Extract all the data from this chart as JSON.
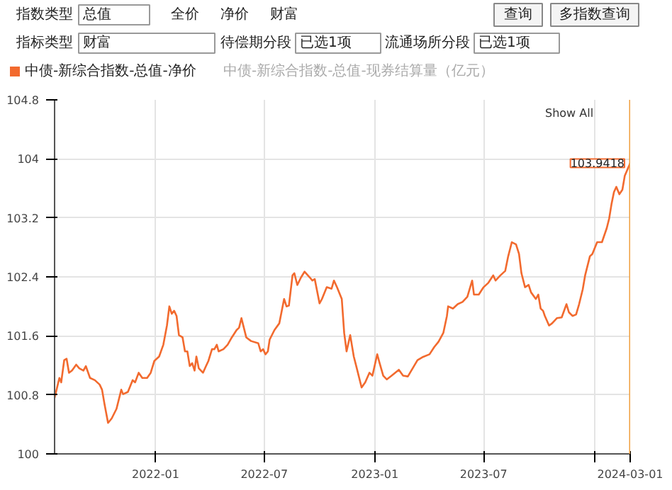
{
  "chart_data": {
    "type": "line",
    "annotations": [
      "指数类型",
      "总值",
      "全价",
      "净价",
      "财富",
      "查询",
      "多指数查询",
      "指标类型",
      "财富",
      "待偿期分段",
      "已选1项",
      "流通场所分段",
      "已选1项",
      "中债-新综合指数-总值-现券结算量（亿元）",
      "Show All",
      {
        "text": "103.9418",
        "x": "2024-03-01",
        "y": 103.9418
      }
    ],
    "x": [
      "2021-07-17",
      "2021-07-25",
      "2021-07-28",
      "2021-08-02",
      "2021-08-06",
      "2021-08-10",
      "2021-08-15",
      "2021-08-22",
      "2021-08-27",
      "2021-09-03",
      "2021-09-07",
      "2021-09-14",
      "2021-09-22",
      "2021-09-30",
      "2021-10-04",
      "2021-10-08",
      "2021-10-14",
      "2021-10-20",
      "2021-10-28",
      "2021-11-05",
      "2021-11-08",
      "2021-11-16",
      "2021-11-24",
      "2021-11-28",
      "2021-12-04",
      "2021-12-10",
      "2021-12-18",
      "2021-12-24",
      "2021-12-30",
      "2022-01-07",
      "2022-01-14",
      "2022-01-20",
      "2022-01-24",
      "2022-01-28",
      "2022-02-01",
      "2022-02-05",
      "2022-02-09",
      "2022-02-15",
      "2022-02-19",
      "2022-02-23",
      "2022-02-27",
      "2022-03-03",
      "2022-03-07",
      "2022-03-10",
      "2022-03-14",
      "2022-03-21",
      "2022-03-26",
      "2022-03-30",
      "2022-04-05",
      "2022-04-09",
      "2022-04-13",
      "2022-04-16",
      "2022-04-24",
      "2022-05-01",
      "2022-05-08",
      "2022-05-16",
      "2022-05-20",
      "2022-05-24",
      "2022-05-28",
      "2022-06-01",
      "2022-06-09",
      "2022-06-21",
      "2022-06-25",
      "2022-06-29",
      "2022-07-03",
      "2022-07-07",
      "2022-07-10",
      "2022-07-18",
      "2022-07-26",
      "2022-08-03",
      "2022-08-07",
      "2022-08-11",
      "2022-08-17",
      "2022-08-20",
      "2022-08-25",
      "2022-08-31",
      "2022-09-06",
      "2022-09-15",
      "2022-09-19",
      "2022-09-23",
      "2022-10-01",
      "2022-10-05",
      "2022-10-13",
      "2022-10-21",
      "2022-10-25",
      "2022-10-30",
      "2022-11-07",
      "2022-11-11",
      "2022-11-15",
      "2022-11-21",
      "2022-11-27",
      "2022-12-02",
      "2022-12-10",
      "2022-12-16",
      "2022-12-23",
      "2022-12-28",
      "2023-01-05",
      "2023-01-09",
      "2023-01-15",
      "2023-01-21",
      "2023-01-29",
      "2023-02-10",
      "2023-02-17",
      "2023-02-25",
      "2023-03-05",
      "2023-03-13",
      "2023-03-21",
      "2023-04-02",
      "2023-04-10",
      "2023-04-17",
      "2023-04-25",
      "2023-05-01",
      "2023-05-03",
      "2023-05-11",
      "2023-05-19",
      "2023-05-27",
      "2023-06-04",
      "2023-06-12",
      "2023-06-15",
      "2023-06-23",
      "2023-07-01",
      "2023-07-09",
      "2023-07-17",
      "2023-07-21",
      "2023-07-29",
      "2023-08-06",
      "2023-08-11",
      "2023-08-17",
      "2023-08-24",
      "2023-08-29",
      "2023-09-02",
      "2023-09-08",
      "2023-09-14",
      "2023-09-18",
      "2023-09-26",
      "2023-09-30",
      "2023-10-04",
      "2023-10-08",
      "2023-10-11",
      "2023-10-18",
      "2023-10-23",
      "2023-10-31",
      "2023-11-08",
      "2023-11-16",
      "2023-11-20",
      "2023-11-26",
      "2023-12-02",
      "2023-12-07",
      "2023-12-13",
      "2023-12-17",
      "2023-12-25",
      "2023-12-29",
      "2024-01-06",
      "2024-01-14",
      "2024-01-22",
      "2024-01-26",
      "2024-01-30",
      "2024-02-03",
      "2024-02-07",
      "2024-02-12",
      "2024-02-17",
      "2024-02-21",
      "2024-03-01"
    ],
    "series": [
      {
        "name": "中债-新综合指数-总值-净价",
        "color": "#f26a2e",
        "values": [
          100.76,
          101.03,
          100.97,
          101.27,
          101.29,
          101.1,
          101.13,
          101.21,
          101.16,
          101.13,
          101.19,
          101.03,
          101.0,
          100.94,
          100.87,
          100.68,
          100.42,
          100.48,
          100.61,
          100.87,
          100.81,
          100.84,
          101.0,
          100.97,
          101.1,
          101.03,
          101.03,
          101.1,
          101.26,
          101.32,
          101.48,
          101.74,
          102.0,
          101.9,
          101.94,
          101.87,
          101.61,
          101.58,
          101.39,
          101.39,
          101.19,
          101.23,
          101.13,
          101.32,
          101.16,
          101.1,
          101.19,
          101.26,
          101.42,
          101.42,
          101.48,
          101.39,
          101.42,
          101.48,
          101.58,
          101.68,
          101.71,
          101.84,
          101.71,
          101.58,
          101.53,
          101.5,
          101.39,
          101.42,
          101.35,
          101.39,
          101.55,
          101.68,
          101.77,
          102.1,
          102.0,
          102.01,
          102.42,
          102.45,
          102.29,
          102.39,
          102.47,
          102.39,
          102.35,
          102.37,
          102.04,
          102.1,
          102.26,
          102.24,
          102.35,
          102.26,
          102.1,
          101.64,
          101.39,
          101.61,
          101.32,
          101.16,
          100.9,
          100.97,
          101.1,
          101.06,
          101.35,
          101.23,
          101.06,
          101.01,
          101.06,
          101.14,
          101.06,
          101.05,
          101.16,
          101.27,
          101.31,
          101.35,
          101.45,
          101.52,
          101.64,
          101.87,
          102.0,
          101.97,
          102.03,
          102.06,
          102.13,
          102.35,
          102.16,
          102.16,
          102.26,
          102.32,
          102.42,
          102.35,
          102.42,
          102.48,
          102.68,
          102.87,
          102.84,
          102.71,
          102.45,
          102.26,
          102.29,
          102.19,
          102.1,
          102.16,
          101.97,
          101.94,
          101.87,
          101.74,
          101.77,
          101.84,
          101.85,
          102.03,
          101.92,
          101.87,
          101.89,
          102.03,
          102.23,
          102.42,
          102.68,
          102.71,
          102.87,
          102.87,
          103.06,
          103.19,
          103.39,
          103.55,
          103.62,
          103.52,
          103.58,
          103.77,
          103.9418
        ]
      }
    ],
    "xlim": [
      "2021-07-17",
      "2024-03-01"
    ],
    "xticks": [
      {
        "value": "2022-01-01",
        "label": "2022-01"
      },
      {
        "value": "2022-07-01",
        "label": "2022-07"
      },
      {
        "value": "2023-01-01",
        "label": "2023-01"
      },
      {
        "value": "2023-07-01",
        "label": "2023-07"
      },
      {
        "value": "2024-01-01",
        "label": null
      }
    ],
    "ylim": [
      100,
      104.8
    ],
    "yticks": [
      100,
      100.8,
      101.6,
      102.4,
      103.2,
      104,
      104.8
    ],
    "ref_lines": [
      {
        "axis": "x",
        "value": "2024-03-01",
        "label": "2024-03-01",
        "color": "#f0a040"
      }
    ],
    "grid": true,
    "legend": "top left",
    "marker": "none",
    "line_style": "solid"
  }
}
